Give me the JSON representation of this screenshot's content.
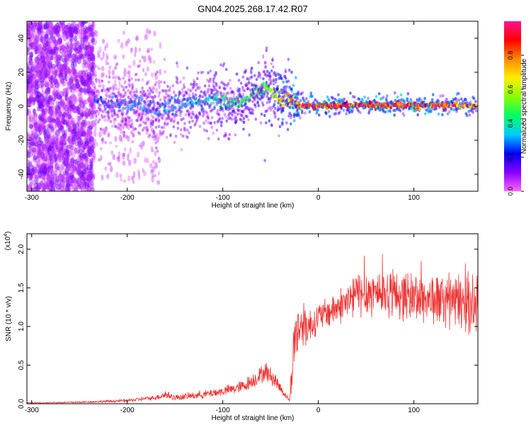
{
  "figure": {
    "title": "GN04.2025.268.17.42.R07"
  },
  "chart_data": [
    {
      "type": "heatmap",
      "xlabel": "Height of straight line (km)",
      "ylabel": "Frequency (Hz)",
      "xlim": [
        -305,
        167
      ],
      "ylim": [
        -50,
        50
      ],
      "x_ticks": [
        -300,
        -200,
        -100,
        0,
        100
      ],
      "y_ticks": [
        -40,
        -20,
        0,
        20,
        40
      ],
      "grid": false,
      "colorbar": {
        "label": "Normalized spectral amplitude",
        "range": [
          0,
          1
        ],
        "ticks": [
          0.0,
          0.2,
          0.4,
          0.6,
          0.8
        ],
        "colormap": [
          "#ff66ff",
          "#8800ff",
          "#0000ff",
          "#00ccff",
          "#00ff66",
          "#88ff00",
          "#ffee00",
          "#ff8800",
          "#ff0000",
          "#ff1493"
        ]
      },
      "ridge": {
        "description_points_x": [
          -230,
          -200,
          -170,
          -140,
          -110,
          -90,
          -70,
          -55,
          -45,
          -35,
          -20,
          0,
          50,
          100,
          165
        ],
        "frequency": [
          3,
          1,
          -2,
          1,
          3,
          1,
          6,
          12,
          6,
          3,
          0.5,
          0.5,
          0.5,
          0.5,
          0.5
        ],
        "amplitude": [
          0.25,
          0.3,
          0.3,
          0.35,
          0.4,
          0.45,
          0.5,
          0.5,
          0.6,
          0.7,
          0.8,
          0.85,
          0.85,
          0.85,
          0.7
        ]
      }
    },
    {
      "type": "line",
      "xlabel": "Height of straight line (km)",
      "ylabel": "SNR (10 * v/v)",
      "y_multiplier_label": "(x10",
      "y_multiplier_exponent": "4",
      "xlim": [
        -305,
        167
      ],
      "ylim": [
        0,
        2.2
      ],
      "x_ticks": [
        -300,
        -200,
        -100,
        0,
        100
      ],
      "y_ticks": [
        "0.0",
        "0.5",
        "1.0",
        "1.5",
        "2.0"
      ],
      "grid": false,
      "series": [
        {
          "color": "#ee3333",
          "envelope_x": [
            -305,
            -250,
            -200,
            -170,
            -160,
            -150,
            -120,
            -100,
            -80,
            -65,
            -55,
            -45,
            -35,
            -30,
            -28,
            -25,
            -20,
            -15,
            -10,
            -5,
            0,
            10,
            20,
            30,
            40,
            60,
            80,
            100,
            120,
            140,
            160,
            167
          ],
          "envelope_y": [
            0.01,
            0.02,
            0.04,
            0.08,
            0.12,
            0.08,
            0.12,
            0.16,
            0.22,
            0.33,
            0.42,
            0.3,
            0.12,
            0.04,
            0.35,
            0.85,
            1.0,
            1.05,
            1.0,
            1.05,
            1.12,
            1.18,
            1.25,
            1.32,
            1.42,
            1.45,
            1.42,
            1.38,
            1.35,
            1.32,
            1.3,
            1.25
          ],
          "noise_amplitude": [
            0.005,
            0.01,
            0.02,
            0.03,
            0.06,
            0.04,
            0.05,
            0.06,
            0.08,
            0.1,
            0.12,
            0.1,
            0.04,
            0.02,
            0.25,
            0.35,
            0.35,
            0.3,
            0.25,
            0.2,
            0.18,
            0.2,
            0.22,
            0.25,
            0.3,
            0.3,
            0.3,
            0.32,
            0.32,
            0.35,
            0.38,
            0.3
          ]
        }
      ]
    }
  ]
}
